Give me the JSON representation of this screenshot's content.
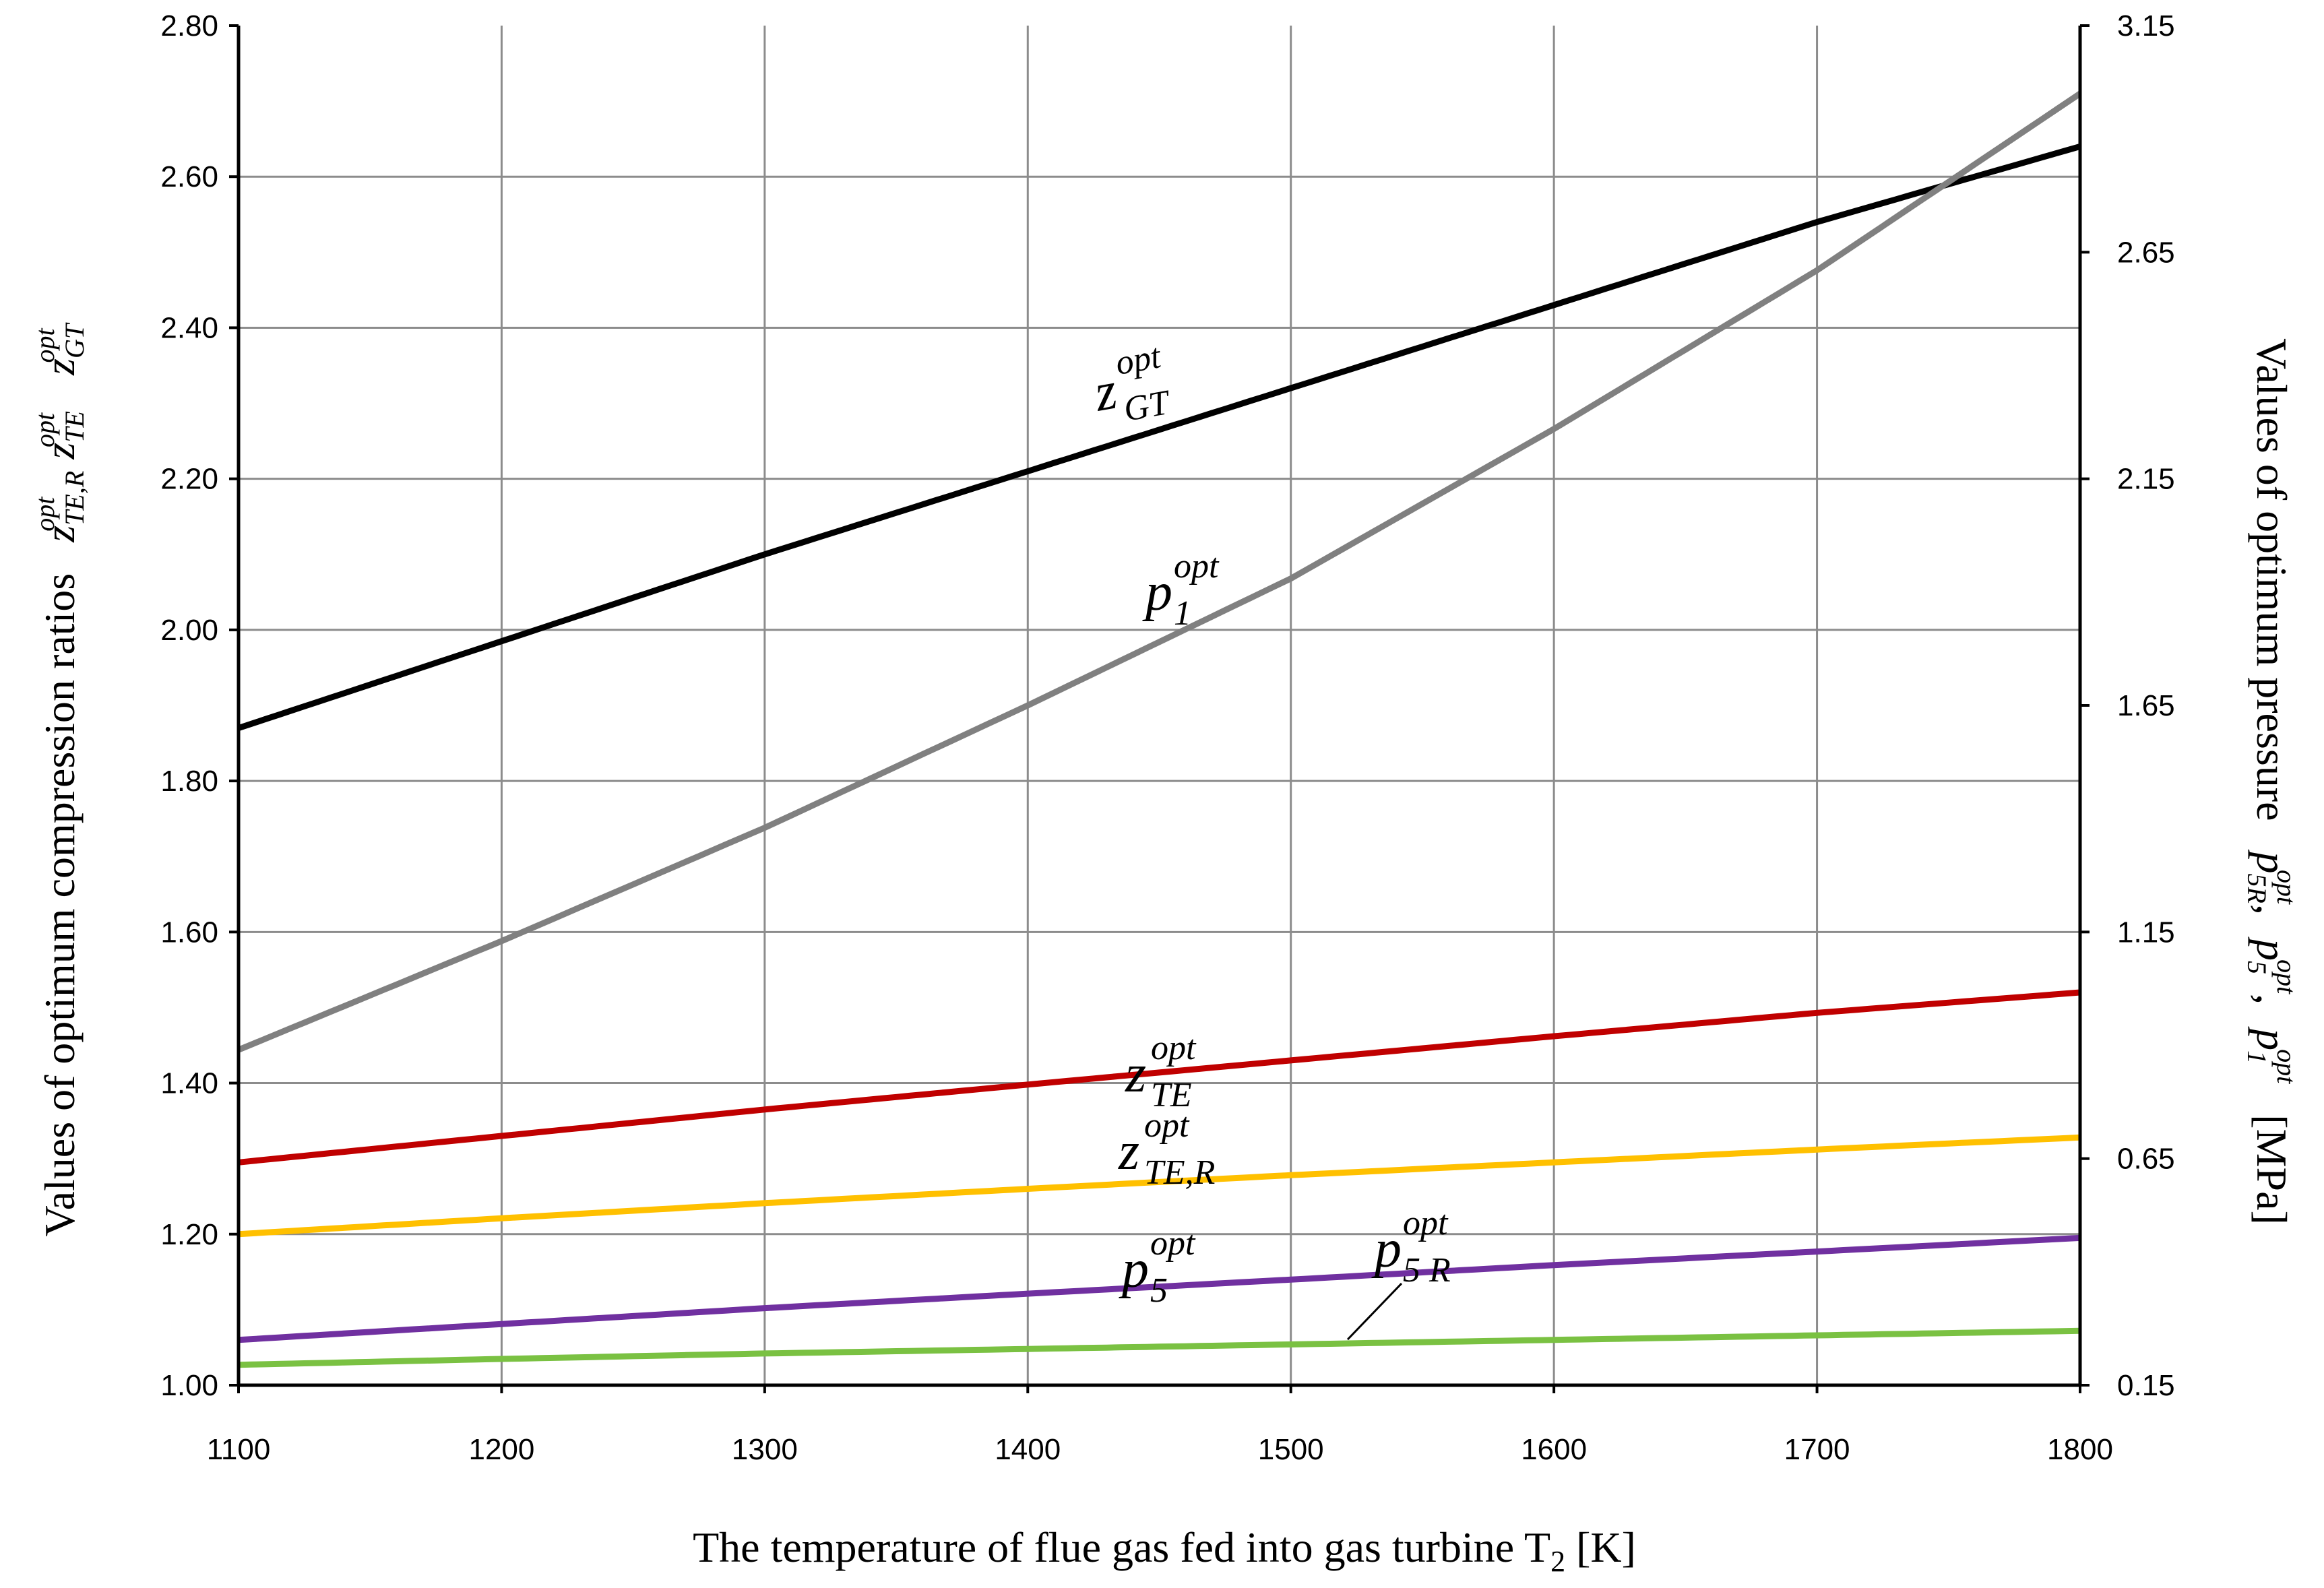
{
  "chart_data": {
    "type": "line",
    "title": "",
    "xlabel": "The temperature of flue gas fed into gas turbine T",
    "xlabel_sub": "2",
    "xlabel_unit": " [K]",
    "ylabel_left": "Values of optimum compression ratios",
    "ylabel_right": "Values of optimum pressure",
    "ylabel_right_unit": "[MPa]",
    "xlim": [
      1100,
      1800
    ],
    "ylim_left": [
      1.0,
      2.8
    ],
    "ylim_right": [
      0.15,
      3.15
    ],
    "x_ticks": [
      "1100",
      "1200",
      "1300",
      "1400",
      "1500",
      "1600",
      "1700",
      "1800"
    ],
    "y_left_ticks": [
      "1.00",
      "1.20",
      "1.40",
      "1.60",
      "1.80",
      "2.00",
      "2.20",
      "2.40",
      "2.60",
      "2.80"
    ],
    "y_right_ticks": [
      "0.15",
      "0.65",
      "1.15",
      "1.65",
      "2.15",
      "2.65",
      "3.15"
    ],
    "grid": true,
    "x": [
      1100,
      1200,
      1300,
      1400,
      1500,
      1600,
      1700,
      1800
    ],
    "series": [
      {
        "name": "z_GT",
        "axis": "left",
        "color": "#000000",
        "label": "z",
        "sub": "GT",
        "sup": "opt",
        "values": [
          1.87,
          1.985,
          2.1,
          2.21,
          2.32,
          2.43,
          2.54,
          2.64
        ]
      },
      {
        "name": "p_1",
        "axis": "right",
        "color": "#808080",
        "label": "p",
        "sub": "1",
        "sup": "opt",
        "values": [
          0.89,
          1.13,
          1.38,
          1.65,
          1.93,
          2.26,
          2.61,
          3.0
        ]
      },
      {
        "name": "z_TE",
        "axis": "left",
        "color": "#c00000",
        "label": "z",
        "sub": "TE",
        "sup": "opt",
        "values": [
          1.295,
          1.33,
          1.365,
          1.398,
          1.43,
          1.462,
          1.493,
          1.52
        ]
      },
      {
        "name": "z_TE,R",
        "axis": "left",
        "color": "#ffc000",
        "label": "z",
        "sub": "TE,R",
        "sup": "opt",
        "values": [
          1.2,
          1.221,
          1.241,
          1.26,
          1.278,
          1.295,
          1.312,
          1.328
        ]
      },
      {
        "name": "p_5",
        "axis": "right",
        "color": "#7030a0",
        "label": "p",
        "sub": "5",
        "sup": "opt",
        "values": [
          0.25,
          0.285,
          0.32,
          0.352,
          0.383,
          0.415,
          0.445,
          0.475
        ]
      },
      {
        "name": "p_5R",
        "axis": "right",
        "color": "#7ac142",
        "label": "p",
        "sub": "5 R",
        "sup": "opt",
        "values": [
          0.195,
          0.208,
          0.22,
          0.23,
          0.24,
          0.25,
          0.26,
          0.27
        ]
      }
    ]
  }
}
